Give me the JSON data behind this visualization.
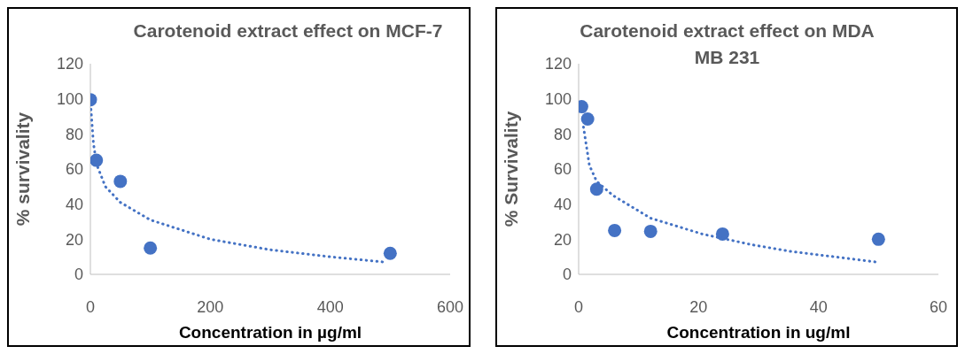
{
  "chart_data": [
    {
      "type": "scatter",
      "title": "Carotenoid extract effect on MCF-7",
      "xlabel": "Concentration in µg/ml",
      "ylabel": "% survivality",
      "xlim": [
        0,
        600
      ],
      "xticks": [
        0,
        200,
        400,
        600
      ],
      "ylim": [
        0,
        120
      ],
      "yticks": [
        0,
        20,
        40,
        60,
        80,
        100,
        120
      ],
      "grid": false,
      "legend": false,
      "marker": "circle",
      "series": [
        {
          "color": "#4472c4",
          "x": [
            0,
            10,
            50,
            100,
            500
          ],
          "values": [
            99.5,
            65,
            53,
            15,
            12
          ]
        },
        {
          "type": "line",
          "color": "#4472c4",
          "line_style": "dotted",
          "marker": "none",
          "x": [
            1,
            5,
            10,
            25,
            50,
            100,
            200,
            300,
            400,
            490
          ],
          "values": [
            94,
            75,
            63,
            50,
            41,
            31,
            20,
            14,
            10,
            7
          ]
        }
      ]
    },
    {
      "type": "scatter",
      "title": "Carotenoid extract effect on MDA MB 231",
      "xlabel": "Concentration in ug/ml",
      "ylabel": "% Survivality",
      "xlim": [
        0,
        60
      ],
      "xticks": [
        0,
        20,
        40,
        60
      ],
      "ylim": [
        0,
        120
      ],
      "yticks": [
        0,
        20,
        40,
        60,
        80,
        100,
        120
      ],
      "grid": false,
      "legend": false,
      "marker": "circle",
      "series": [
        {
          "color": "#4472c4",
          "x": [
            0.5,
            1.5,
            3,
            6,
            12,
            24,
            50
          ],
          "values": [
            95.5,
            88.5,
            48.5,
            25,
            24.5,
            23,
            20
          ]
        },
        {
          "type": "line",
          "color": "#4472c4",
          "line_style": "dotted",
          "marker": "none",
          "x": [
            0.8,
            1.8,
            3,
            5.7,
            12,
            20.6,
            28.7,
            35.5,
            42.7,
            49.7
          ],
          "values": [
            84,
            62,
            53,
            45,
            32,
            23,
            17,
            13,
            10,
            7
          ]
        }
      ]
    }
  ]
}
